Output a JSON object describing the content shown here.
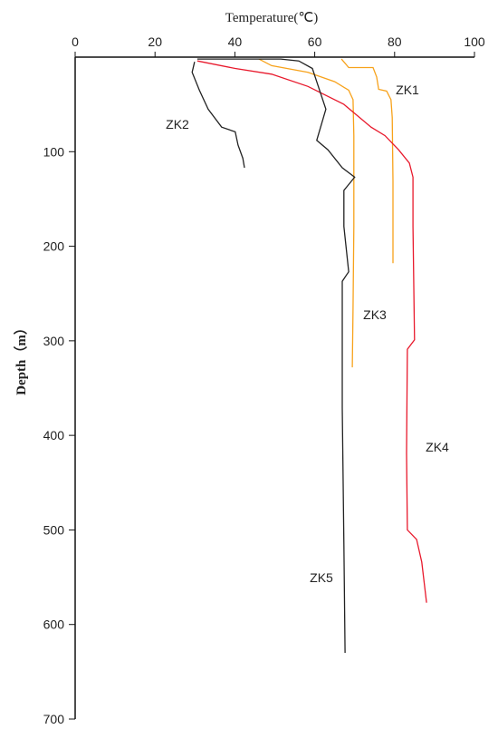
{
  "chart_data": {
    "type": "line",
    "x_label": "Temperature(℃)",
    "y_label": "Depth（m）",
    "x_axis_position": "top",
    "y_inverted": true,
    "xlim": [
      0,
      100
    ],
    "xticks": [
      0,
      20,
      40,
      60,
      80,
      100
    ],
    "ylim": [
      0,
      700
    ],
    "yticks": [
      100,
      200,
      300,
      400,
      500,
      600,
      700
    ],
    "series": [
      {
        "name": "ZK1",
        "color": "#f7a21b",
        "x": [
          66.7,
          68.5,
          74.6,
          75.5,
          76,
          78,
          79.1,
          79.4,
          79.6,
          79.6
        ],
        "values": [
          2,
          11,
          11,
          21,
          34,
          36,
          45,
          64,
          131,
          218
        ]
      },
      {
        "name": "ZK2",
        "color": "#222222",
        "x": [
          29.9,
          29.3,
          31.1,
          33.3,
          36.7,
          40.1,
          40.8,
          42,
          42.4
        ],
        "values": [
          5,
          16,
          35,
          55,
          74,
          79,
          93,
          107,
          117
        ]
      },
      {
        "name": "ZK3",
        "color": "#f7a21b",
        "x": [
          46,
          49.2,
          58.3,
          65,
          68.5,
          69.6,
          69.8,
          69.8,
          69.6,
          69.4
        ],
        "values": [
          2,
          9,
          16,
          26,
          35,
          45,
          83,
          179,
          266,
          328
        ]
      },
      {
        "name": "ZK4",
        "color": "#e8192c",
        "x": [
          30.6,
          40.1,
          49.2,
          58.3,
          67.3,
          74.1,
          77.6,
          81,
          83.7,
          84.6,
          84.6,
          85,
          83.2,
          83,
          83.2,
          85.5,
          86.8,
          88
        ],
        "values": [
          4,
          12,
          18,
          31,
          50,
          74,
          83,
          98,
          112,
          127,
          179,
          299,
          309,
          419,
          500,
          510,
          534,
          577
        ]
      },
      {
        "name": "ZK5",
        "color": "#222222",
        "x": [
          30.6,
          51.5,
          56,
          59.4,
          60.5,
          62.8,
          60.5,
          63.3,
          66.9,
          70,
          67.3,
          67.3,
          68.5,
          66.9,
          66.9,
          67.3,
          67.6
        ],
        "values": [
          2,
          2,
          4,
          12,
          26,
          55,
          88,
          98,
          117,
          127,
          141,
          179,
          227,
          237,
          371,
          515,
          630
        ]
      }
    ]
  }
}
